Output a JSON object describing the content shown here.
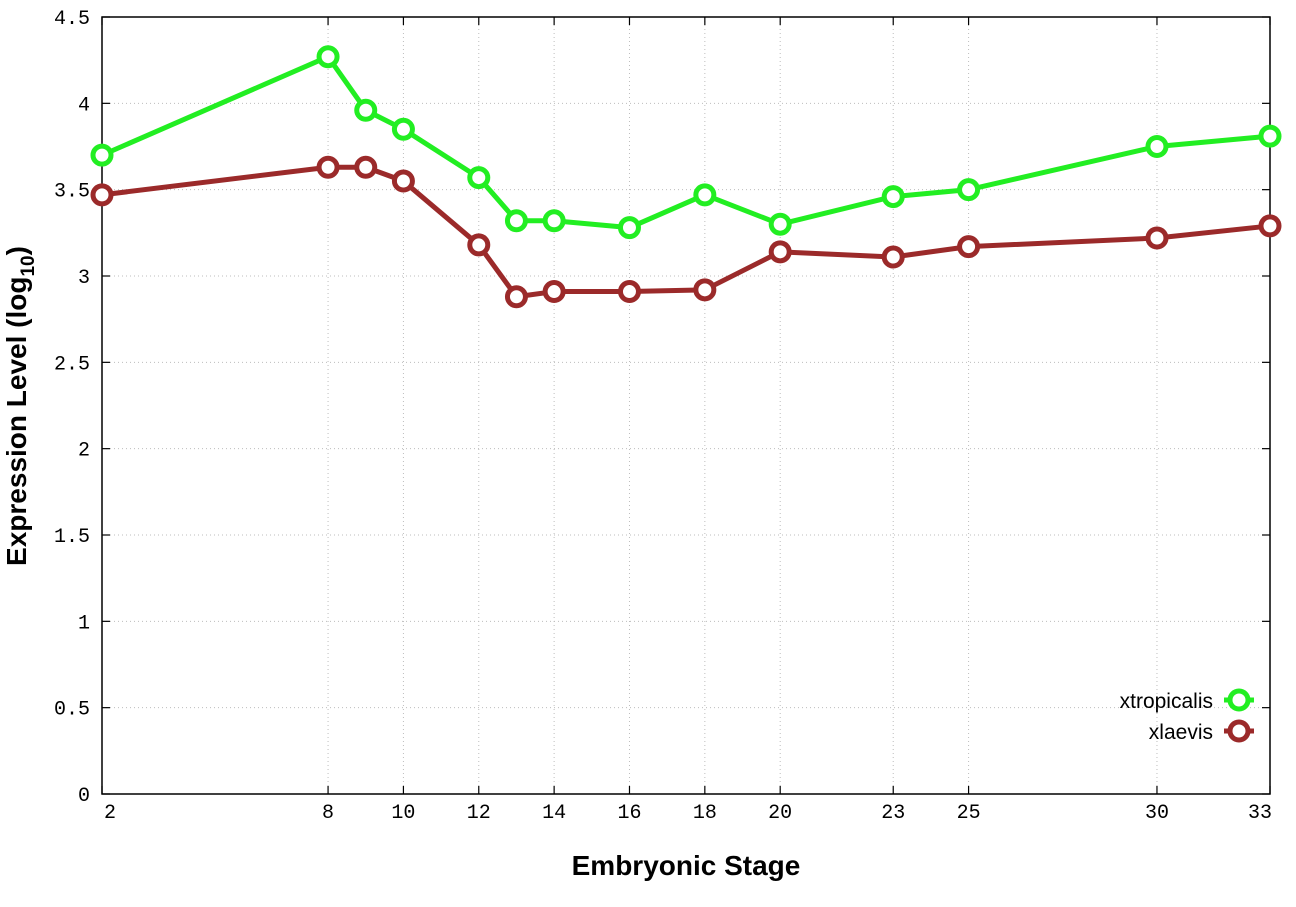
{
  "chart_data": {
    "type": "line",
    "title": "",
    "xlabel": "Embryonic Stage",
    "ylabel_main": "Expression Level (log",
    "ylabel_sub": "10",
    "ylabel_end": ")",
    "xlim": [
      2,
      33
    ],
    "ylim": [
      0,
      4.5
    ],
    "x_ticks": [
      2,
      8,
      10,
      12,
      14,
      16,
      18,
      20,
      23,
      25,
      30,
      33
    ],
    "x_tick_labels": [
      "2",
      "8",
      "10",
      "12",
      "14",
      "16",
      "18",
      "20",
      "23",
      "25",
      "30",
      "33"
    ],
    "y_ticks": [
      0,
      0.5,
      1,
      1.5,
      2,
      2.5,
      3,
      3.5,
      4,
      4.5
    ],
    "y_tick_labels": [
      "0",
      "0.5",
      "1",
      "1.5",
      "2",
      "2.5",
      "3",
      "3.5",
      "4",
      "4.5"
    ],
    "grid": true,
    "legend_position": "bottom-right",
    "x": [
      2,
      8,
      9,
      10,
      12,
      13,
      14,
      16,
      18,
      20,
      23,
      25,
      30,
      33
    ],
    "series": [
      {
        "name": "xtropicalis",
        "color": "#22ee22",
        "values": [
          3.7,
          4.27,
          3.96,
          3.85,
          3.57,
          3.32,
          3.32,
          3.28,
          3.47,
          3.3,
          3.46,
          3.5,
          3.75,
          3.81
        ]
      },
      {
        "name": "xlaevis",
        "color": "#9b2a2a",
        "values": [
          3.47,
          3.63,
          3.63,
          3.55,
          3.18,
          2.88,
          2.91,
          2.91,
          2.92,
          3.14,
          3.11,
          3.17,
          3.22,
          3.29
        ]
      }
    ]
  }
}
